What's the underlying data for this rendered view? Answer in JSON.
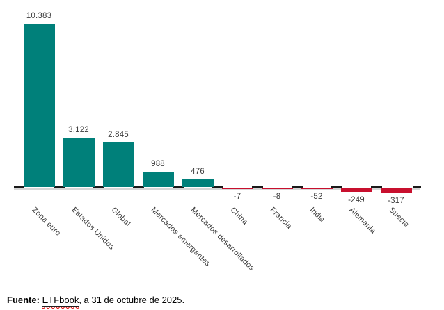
{
  "chart_data": {
    "type": "bar",
    "title": "",
    "xlabel": "",
    "ylabel": "",
    "categories": [
      "Zona euro",
      "Estados Unidos",
      "Global",
      "Mercados emergentes",
      "Mercados desarrollados",
      "China",
      "Francia",
      "India",
      "Alemania",
      "Suecia"
    ],
    "values": [
      10383,
      3122,
      2845,
      988,
      476,
      -7,
      -8,
      -52,
      -249,
      -317
    ],
    "value_labels": [
      "10.383",
      "3.122",
      "2.845",
      "988",
      "476",
      "-7",
      "-8",
      "-52",
      "-249",
      "-317"
    ],
    "ylim": [
      -500,
      11000
    ],
    "grid": false,
    "legend_position": "none",
    "bar_positive_color": "#00807A",
    "bar_negative_color": "#C8102E",
    "axis_dash_color": "#1a1a1a",
    "baseline_color": "#d6d6d6",
    "label_color": "#3d3d3d"
  },
  "footer": {
    "source_label": "Fuente:",
    "source_link_text": "ETFbook",
    "source_suffix": ", a 31 de octubre de 2025."
  }
}
